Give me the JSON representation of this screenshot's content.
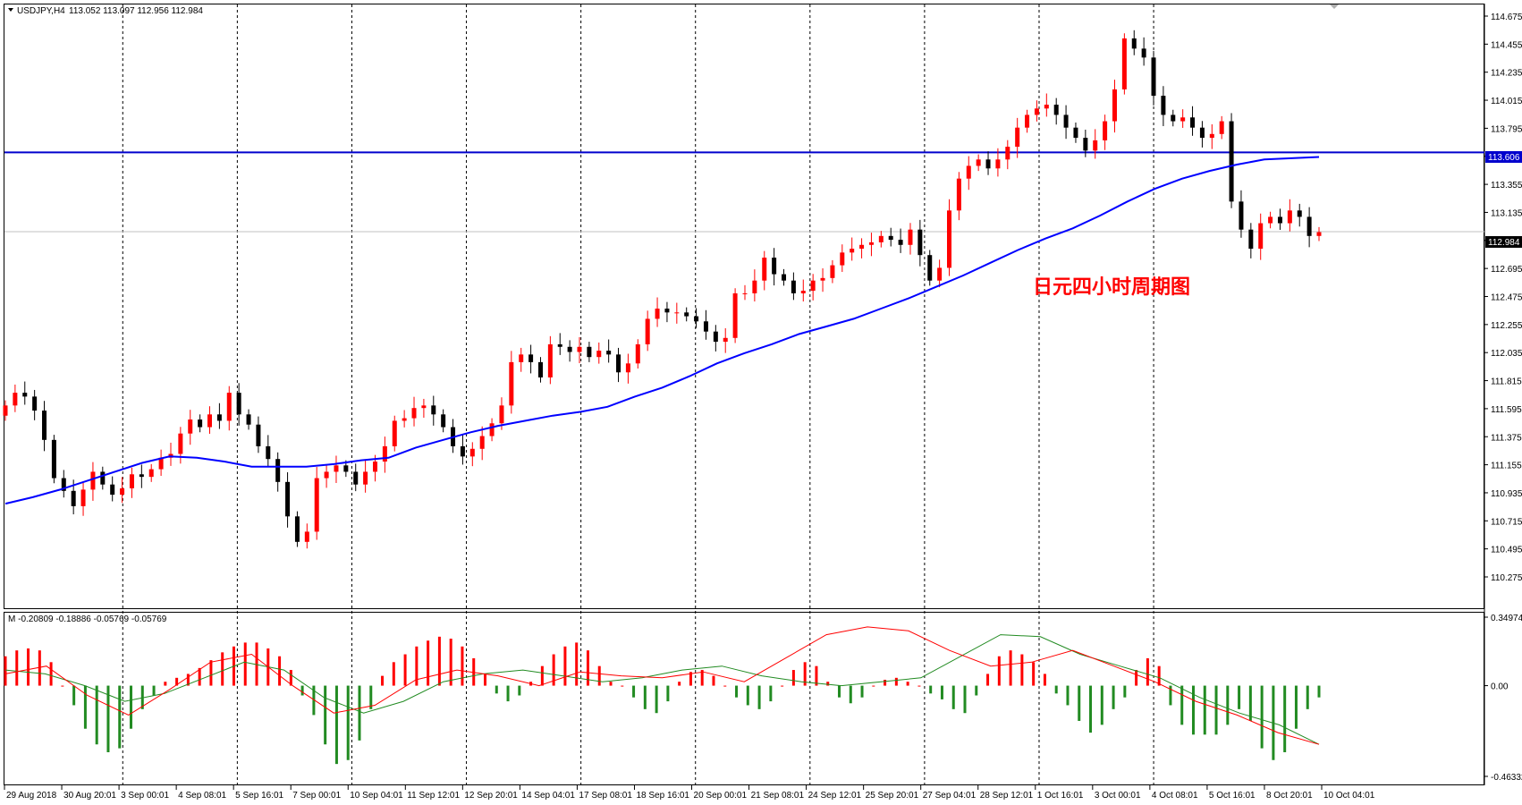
{
  "header": {
    "symbol": "USDJPY,H4",
    "ohlc": "113.052 113.097 112.956 112.984",
    "osc_label": "M -0.20809 -0.18886 -0.05769 -0.05769"
  },
  "annotation": "日元四小时周期图",
  "price_axis": {
    "ticks": [
      "114.675",
      "114.455",
      "114.235",
      "114.015",
      "113.795",
      "113.575",
      "113.355",
      "113.135",
      "112.915",
      "112.695",
      "112.475",
      "112.255",
      "112.035",
      "111.815",
      "111.595",
      "111.375",
      "111.155",
      "110.935",
      "110.715",
      "110.495",
      "110.275"
    ],
    "tick_values": [
      114.675,
      114.455,
      114.235,
      114.015,
      113.795,
      113.575,
      113.355,
      113.135,
      112.915,
      112.695,
      112.475,
      112.255,
      112.035,
      111.815,
      111.595,
      111.375,
      111.155,
      110.935,
      110.715,
      110.495,
      110.275
    ]
  },
  "osc_axis": {
    "ticks": [
      "0.34974",
      "0.00",
      "-0.46332"
    ],
    "tick_values": [
      0.34974,
      0.0,
      -0.46332
    ]
  },
  "hline_badge": "113.606",
  "price_badge": "112.984",
  "time_labels": [
    "29 Aug 2018",
    "30 Aug 20:01",
    "3 Sep 00:01",
    "4 Sep 08:01",
    "5 Sep 16:01",
    "7 Sep 00:01",
    "10 Sep 04:01",
    "11 Sep 12:01",
    "12 Sep 20:01",
    "14 Sep 04:01",
    "17 Sep 08:01",
    "18 Sep 16:01",
    "20 Sep 00:01",
    "21 Sep 08:01",
    "24 Sep 12:01",
    "25 Sep 20:01",
    "27 Sep 04:01",
    "28 Sep 12:01",
    "1 Oct 16:01",
    "3 Oct 00:01",
    "4 Oct 08:01",
    "5 Oct 16:01",
    "8 Oct 20:01",
    "10 Oct 04:01"
  ],
  "colors": {
    "bull": "#ff0000",
    "bear": "#000000",
    "ma": "#0000ff",
    "hline": "#0000cd",
    "hist_pos": "#ff0000",
    "hist_neg": "#228b22",
    "sig_green": "#228b22",
    "sig_red": "#ff0000"
  },
  "chart_data": [
    {
      "type": "candlestick",
      "symbol": "USDJPY",
      "timeframe": "H4",
      "ylim": [
        110.275,
        114.675
      ],
      "horizontal_line": 113.606,
      "current_price": 112.984,
      "close_series": [
        111.62,
        111.72,
        111.69,
        111.58,
        111.35,
        111.05,
        110.95,
        110.83,
        110.96,
        111.1,
        111.0,
        110.92,
        110.97,
        111.08,
        111.06,
        111.12,
        111.21,
        111.24,
        111.4,
        111.51,
        111.45,
        111.55,
        111.5,
        111.72,
        111.55,
        111.47,
        111.3,
        111.2,
        111.02,
        110.75,
        110.55,
        110.63,
        111.05,
        111.1,
        111.15,
        111.1,
        111.0,
        111.1,
        111.18,
        111.3,
        111.5,
        111.52,
        111.6,
        111.62,
        111.55,
        111.45,
        111.3,
        111.22,
        111.28,
        111.38,
        111.48,
        111.62,
        111.96,
        112.02,
        111.96,
        111.84,
        112.1,
        112.08,
        112.04,
        112.08,
        112.0,
        112.05,
        112.02,
        111.88,
        111.95,
        112.1,
        112.3,
        112.38,
        112.35,
        112.35,
        112.32,
        112.28,
        112.2,
        112.12,
        112.15,
        112.5,
        112.5,
        112.6,
        112.78,
        112.65,
        112.6,
        112.5,
        112.52,
        112.6,
        112.62,
        112.72,
        112.82,
        112.85,
        112.88,
        112.9,
        112.95,
        112.92,
        112.88,
        113.0,
        112.8,
        112.6,
        112.7,
        113.15,
        113.4,
        113.5,
        113.55,
        113.48,
        113.55,
        113.65,
        113.8,
        113.9,
        113.95,
        113.98,
        113.9,
        113.8,
        113.72,
        113.62,
        113.7,
        113.85,
        114.1,
        114.5,
        114.42,
        114.35,
        114.05,
        113.9,
        113.85,
        113.88,
        113.8,
        113.72,
        113.75,
        113.85,
        113.22,
        113.0,
        112.85,
        113.05,
        113.1,
        113.05,
        113.15,
        113.1,
        112.95,
        112.98
      ],
      "ma_series": [
        110.85,
        110.9,
        110.96,
        111.03,
        111.1,
        111.17,
        111.22,
        111.21,
        111.18,
        111.14,
        111.14,
        111.14,
        111.16,
        111.19,
        111.21,
        111.29,
        111.35,
        111.41,
        111.46,
        111.5,
        111.54,
        111.57,
        111.61,
        111.69,
        111.76,
        111.85,
        111.95,
        112.03,
        112.1,
        112.18,
        112.24,
        112.3,
        112.38,
        112.46,
        112.55,
        112.64,
        112.74,
        112.84,
        112.93,
        113.01,
        113.11,
        113.22,
        113.32,
        113.4,
        113.46,
        113.51,
        113.55,
        113.56,
        113.57
      ],
      "xlabel": "",
      "ylabel": ""
    },
    {
      "type": "bar",
      "name": "oscillator histogram",
      "ylim": [
        -0.46332,
        0.34974
      ],
      "values": [
        0.15,
        0.18,
        0.19,
        0.18,
        0.12,
        0.0,
        -0.1,
        -0.22,
        -0.3,
        -0.34,
        -0.32,
        -0.22,
        -0.12,
        -0.05,
        0.02,
        0.04,
        0.06,
        0.09,
        0.13,
        0.17,
        0.2,
        0.22,
        0.22,
        0.19,
        0.15,
        0.08,
        -0.05,
        -0.15,
        -0.3,
        -0.4,
        -0.38,
        -0.28,
        -0.12,
        0.05,
        0.12,
        0.16,
        0.2,
        0.23,
        0.25,
        0.24,
        0.2,
        0.14,
        0.06,
        -0.04,
        -0.08,
        -0.05,
        0.02,
        0.1,
        0.16,
        0.2,
        0.22,
        0.18,
        0.1,
        0.02,
        0.0,
        -0.06,
        -0.12,
        -0.14,
        -0.08,
        0.02,
        0.07,
        0.08,
        0.05,
        0.0,
        -0.06,
        -0.1,
        -0.12,
        -0.08,
        0.0,
        0.08,
        0.12,
        0.1,
        0.02,
        -0.06,
        -0.09,
        -0.06,
        0.0,
        0.03,
        0.04,
        0.02,
        0.0,
        -0.04,
        -0.07,
        -0.12,
        -0.14,
        -0.05,
        0.06,
        0.15,
        0.18,
        0.16,
        0.12,
        0.06,
        -0.04,
        -0.1,
        -0.18,
        -0.24,
        -0.2,
        -0.12,
        -0.06,
        0.08,
        0.14,
        0.1,
        -0.1,
        -0.2,
        -0.25,
        -0.25,
        -0.25,
        -0.2,
        -0.12,
        -0.18,
        -0.32,
        -0.38,
        -0.34,
        -0.22,
        -0.12,
        -0.06
      ],
      "signal_green": [
        0.08,
        0.06,
        0.0,
        -0.08,
        -0.04,
        0.04,
        0.12,
        0.08,
        -0.06,
        -0.14,
        -0.08,
        0.02,
        0.06,
        0.08,
        0.05,
        0.02,
        0.04,
        0.08,
        0.1,
        0.05,
        0.02,
        0.0,
        0.02,
        0.04,
        0.15,
        0.26,
        0.25,
        0.16,
        0.1,
        0.04,
        -0.06,
        -0.14,
        -0.2,
        -0.3
      ],
      "signal_red": [
        0.06,
        0.1,
        -0.05,
        -0.15,
        -0.02,
        0.12,
        0.16,
        0.0,
        -0.14,
        -0.1,
        0.03,
        0.08,
        0.05,
        0.0,
        0.07,
        0.05,
        0.04,
        0.07,
        0.02,
        0.14,
        0.26,
        0.3,
        0.28,
        0.18,
        0.1,
        0.12,
        0.18,
        0.1,
        0.02,
        -0.08,
        -0.15,
        -0.24,
        -0.3
      ],
      "xlabel": "",
      "ylabel": ""
    }
  ]
}
